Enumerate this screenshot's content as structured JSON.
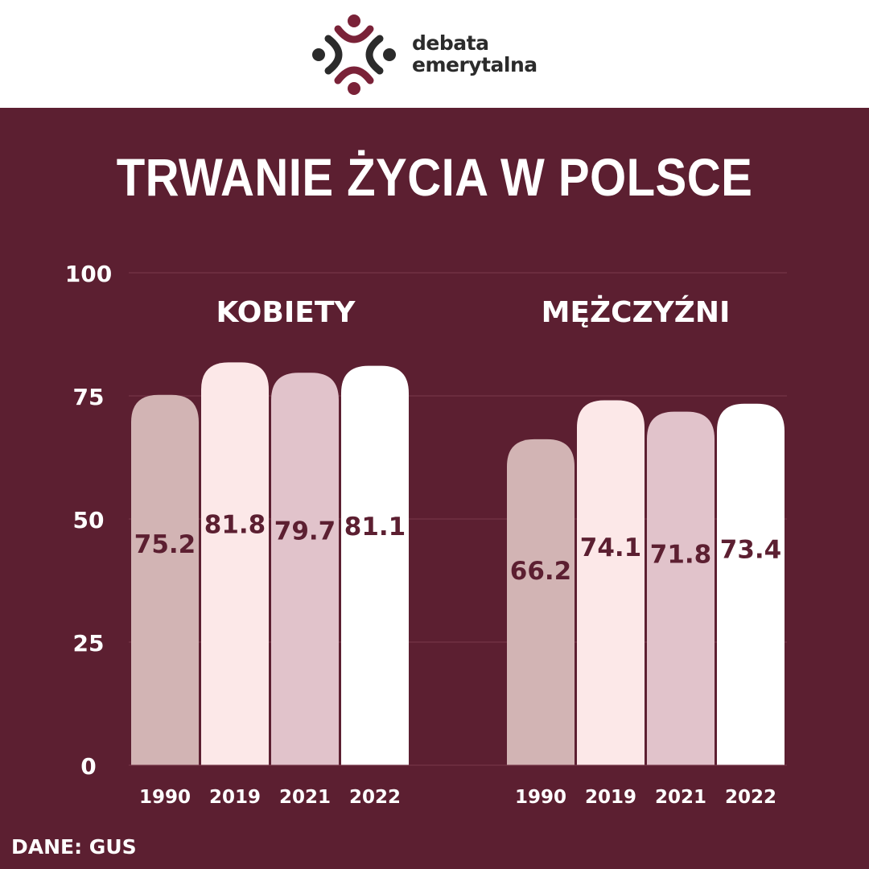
{
  "logo": {
    "line1": "debata",
    "line2": "emerytalna"
  },
  "colors": {
    "background": "#5c1f31",
    "text_light": "#ffffff",
    "label_dark": "#5c1f31",
    "bar_1990": "#d2b4b4",
    "bar_2019": "#fce8e8",
    "bar_2021": "#e1c3cb",
    "bar_2022": "#ffffff",
    "grid": "#7a3a4c"
  },
  "footer": "DANE: GUS",
  "chart_data": {
    "type": "bar",
    "title": "TRWANIE ŻYCIA W POLSCE",
    "ylim": [
      0,
      100
    ],
    "yticks": [
      0,
      25,
      50,
      75,
      100
    ],
    "grid": true,
    "categories": [
      "1990",
      "2019",
      "2021",
      "2022"
    ],
    "groups": [
      {
        "name": "KOBIETY",
        "values": [
          75.2,
          81.8,
          79.7,
          81.1
        ]
      },
      {
        "name": "MĘŻCZYŹNI",
        "values": [
          66.2,
          74.1,
          71.8,
          73.4
        ]
      }
    ]
  }
}
